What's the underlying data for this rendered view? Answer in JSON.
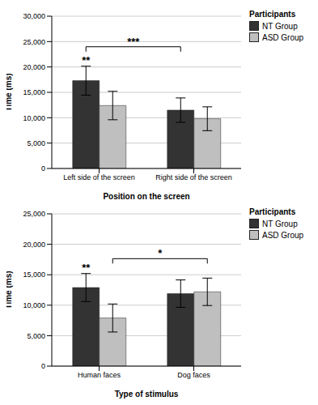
{
  "chart_data": [
    {
      "type": "bar",
      "categories": [
        "Left side of the screen",
        "Right side of the screen"
      ],
      "series": [
        {
          "name": "NT Group",
          "color": "#333333",
          "values": [
            17300,
            11500
          ],
          "errors": [
            2850,
            2400
          ]
        },
        {
          "name": "ASD Group",
          "color": "#bfbfbf",
          "values": [
            12400,
            9800
          ],
          "errors": [
            2800,
            2350
          ]
        }
      ],
      "xlabel": "Position on the screen",
      "ylabel": "Time (ms)",
      "ylim": [
        0,
        30000
      ],
      "yticks": [
        0,
        {
          "value": 5000,
          "label": "5,000"
        },
        {
          "value": 10000,
          "label": "10,000"
        },
        {
          "value": 15000,
          "label": "15,000"
        },
        {
          "value": 20000,
          "label": "20,000"
        },
        {
          "value": 25000,
          "label": "25,000"
        },
        {
          "value": 30000,
          "label": "30,000"
        }
      ],
      "grid": true,
      "legend": "right",
      "legend_title": "Participants",
      "annotations": [
        {
          "text": "**",
          "category": "Left side of the screen",
          "series": "NT Group"
        },
        {
          "text": "***",
          "from": {
            "category": "Left side of the screen",
            "series": "NT Group"
          },
          "to": {
            "category": "Right side of the screen",
            "series": "NT Group"
          }
        }
      ]
    },
    {
      "type": "bar",
      "categories": [
        "Human faces",
        "Dog faces"
      ],
      "series": [
        {
          "name": "NT Group",
          "color": "#333333",
          "values": [
            12900,
            11900
          ],
          "errors": [
            2300,
            2250
          ]
        },
        {
          "name": "ASD Group",
          "color": "#bfbfbf",
          "values": [
            7900,
            12200
          ],
          "errors": [
            2300,
            2250
          ]
        }
      ],
      "xlabel": "Type of stimulus",
      "ylabel": "Time (ms)",
      "ylim": [
        0,
        25000
      ],
      "yticks": [
        0,
        {
          "value": 5000,
          "label": "5,000"
        },
        {
          "value": 10000,
          "label": "10,000"
        },
        {
          "value": 15000,
          "label": "15,000"
        },
        {
          "value": 20000,
          "label": "20,000"
        },
        {
          "value": 25000,
          "label": "25,000"
        }
      ],
      "grid": true,
      "legend": "right",
      "legend_title": "Participants",
      "annotations": [
        {
          "text": "**",
          "category": "Human faces",
          "series": "NT Group"
        },
        {
          "text": "*",
          "from": {
            "category": "Human faces",
            "series": "ASD Group"
          },
          "to": {
            "category": "Dog faces",
            "series": "ASD Group"
          }
        }
      ]
    }
  ]
}
